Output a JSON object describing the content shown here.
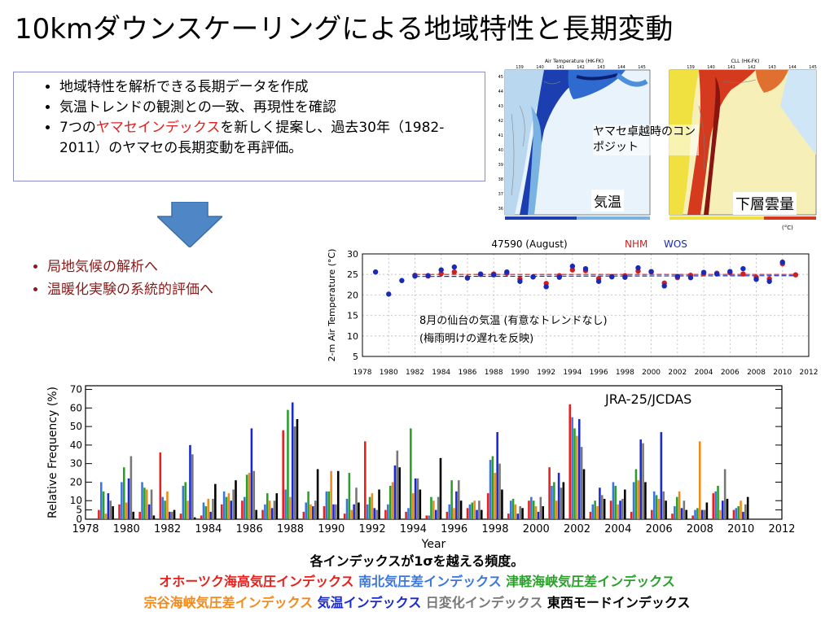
{
  "title": "10kmダウンスケーリングによる地域特性と長期変動",
  "bullets": {
    "items": [
      "地域特性を解析できる長期データを作成",
      "気温トレンドの観測との一致、再現性を確認"
    ],
    "item3_pre": "7つの",
    "item3_highlight": "ヤマセインデックス",
    "item3_post": "を新しく提案し、過去30年（1982-2011）のヤマセの長期変動を再評価。"
  },
  "next_steps": [
    "局地気候の解析へ",
    "温暖化実験の系統的評価へ"
  ],
  "maps": {
    "left_title": "Air Temperature (HK-FK)",
    "right_title": "CLL (HK-FK)",
    "lon_ticks": [
      "139",
      "140",
      "141",
      "142",
      "143",
      "144",
      "145"
    ],
    "lat_ticks": [
      "45",
      "44",
      "43",
      "42",
      "41",
      "40",
      "39",
      "38",
      "37",
      "36"
    ],
    "unit": "(°C)",
    "composite_label": "ヤマセ卓越時のコンポジット",
    "left_label": "気温",
    "right_label": "下層雲量",
    "colors": {
      "warm": "#d63a1e",
      "cold": "#1f4fc8",
      "mid": "#f0e040"
    }
  },
  "temp_chart": {
    "title": "47590 (August)",
    "legend_nhm": "NHM",
    "legend_wos": "WOS",
    "ylabel": "2-m Air Temperature (°C)",
    "annotation_line1": "8月の仙台の気温 (有意なトレンドなし)",
    "annotation_line2": "(梅雨明けの遅れを反映)"
  },
  "freq_chart": {
    "source": "JRA-25/JCDAS",
    "caption": "各インデックスが1σを越える頻度。"
  },
  "legend_rows": [
    [
      {
        "name": "オホーツク海高気圧インデックス",
        "color": "#e8201c"
      },
      {
        "name": "南北気圧差インデックス",
        "color": "#3a76e0"
      },
      {
        "name": "津軽海峡気圧差インデックス",
        "color": "#2aa02a"
      }
    ],
    [
      {
        "name": "宗谷海峡気圧差インデックス",
        "color": "#f08a1a"
      },
      {
        "name": "気温インデックス",
        "color": "#1a2ad0"
      },
      {
        "name": "日変化インデックス",
        "color": "#777777"
      },
      {
        "name": "東西モードインデックス",
        "color": "#000000"
      }
    ]
  ],
  "chart_data": [
    {
      "type": "scatter",
      "title": "47590 (August)",
      "xlabel": "",
      "ylabel": "2-m Air Temperature (°C)",
      "xlim": [
        1978,
        2012
      ],
      "ylim": [
        5,
        30
      ],
      "x_ticks": [
        1978,
        1980,
        1982,
        1984,
        1986,
        1988,
        1990,
        1992,
        1994,
        1996,
        1998,
        2000,
        2002,
        2004,
        2006,
        2008,
        2010,
        2012
      ],
      "y_ticks": [
        5,
        10,
        15,
        20,
        25,
        30
      ],
      "grid": true,
      "series": [
        {
          "name": "NHM",
          "color": "#d21e1e",
          "years": [
            1982,
            1983,
            1984,
            1985,
            1986,
            1987,
            1988,
            1989,
            1990,
            1991,
            1992,
            1993,
            1994,
            1995,
            1996,
            1997,
            1998,
            1999,
            2000,
            2001,
            2002,
            2003,
            2004,
            2005,
            2006,
            2007,
            2008,
            2009,
            2010,
            2011
          ],
          "values": [
            24.8,
            24.6,
            25.2,
            25.6,
            24.2,
            25.0,
            25.1,
            25.3,
            23.9,
            24.4,
            22.8,
            24.7,
            26.1,
            25.9,
            24.0,
            24.5,
            24.7,
            25.8,
            25.6,
            22.9,
            24.2,
            24.8,
            25.2,
            25.3,
            25.4,
            25.1,
            24.3,
            23.9,
            27.6,
            24.9
          ]
        },
        {
          "name": "WOS",
          "color": "#1a2ab8",
          "years": [
            1979,
            1980,
            1981,
            1982,
            1983,
            1984,
            1985,
            1986,
            1987,
            1988,
            1989,
            1990,
            1991,
            1992,
            1993,
            1994,
            1995,
            1996,
            1997,
            1998,
            1999,
            2000,
            2001,
            2002,
            2003,
            2004,
            2005,
            2006,
            2007,
            2008,
            2009,
            2010
          ],
          "values": [
            25.6,
            20.2,
            23.5,
            24.6,
            24.7,
            26.1,
            26.8,
            24.1,
            25.1,
            24.9,
            25.6,
            23.3,
            24.4,
            22.0,
            24.3,
            27.0,
            26.4,
            23.3,
            24.4,
            24.3,
            26.6,
            25.7,
            22.2,
            24.5,
            24.2,
            25.5,
            25.1,
            25.7,
            26.4,
            23.8,
            23.3,
            28.0
          ]
        }
      ],
      "trend_lines": [
        {
          "name": "NHM",
          "color": "#d21e1e",
          "from": [
            1982,
            25.0
          ],
          "to": [
            2011,
            25.0
          ]
        },
        {
          "name": "WOS",
          "color": "#1a2ab8",
          "from": [
            1982,
            24.5
          ],
          "to": [
            2011,
            24.7
          ]
        }
      ]
    },
    {
      "type": "bar",
      "title": "",
      "xlabel": "Year",
      "ylabel": "Relative Frequency (%)",
      "xlim": [
        1978,
        2012
      ],
      "ylim": [
        0,
        72
      ],
      "x_ticks": [
        1978,
        1980,
        1982,
        1984,
        1986,
        1988,
        1990,
        1992,
        1994,
        1996,
        1998,
        2000,
        2002,
        2004,
        2006,
        2008,
        2010,
        2012
      ],
      "y_ticks": [
        0,
        5,
        10,
        20,
        30,
        40,
        50,
        60,
        70
      ],
      "years": [
        1979,
        1980,
        1981,
        1982,
        1983,
        1984,
        1985,
        1986,
        1987,
        1988,
        1989,
        1990,
        1991,
        1992,
        1993,
        1994,
        1995,
        1996,
        1997,
        1998,
        1999,
        2000,
        2001,
        2002,
        2003,
        2004,
        2005,
        2006,
        2007,
        2008,
        2009,
        2010
      ],
      "series": [
        {
          "name": "オホーツク海高気圧インデックス",
          "color": "#e8201c",
          "values": [
            5,
            8,
            4,
            36,
            3,
            2,
            8,
            10,
            5,
            48,
            4,
            7,
            3,
            42,
            5,
            4,
            2,
            4,
            6,
            14,
            3,
            10,
            28,
            62,
            4,
            10,
            4,
            5,
            3,
            2,
            14,
            5
          ]
        },
        {
          "name": "南北気圧差インデックス",
          "color": "#3a76e0",
          "values": [
            20,
            20,
            20,
            12,
            18,
            9,
            15,
            12,
            8,
            16,
            9,
            15,
            11,
            8,
            8,
            6,
            2,
            8,
            8,
            32,
            10,
            12,
            18,
            55,
            8,
            20,
            20,
            15,
            7,
            5,
            15,
            6
          ]
        },
        {
          "name": "津軽海峡気圧差インデックス",
          "color": "#2aa02a",
          "values": [
            15,
            28,
            17,
            10,
            20,
            7,
            12,
            24,
            14,
            59,
            15,
            15,
            25,
            12,
            18,
            49,
            12,
            21,
            9,
            34,
            11,
            10,
            20,
            49,
            10,
            18,
            27,
            13,
            12,
            6,
            18,
            7
          ]
        },
        {
          "name": "宗谷海峡気圧差インデックス",
          "color": "#f08a1a",
          "values": [
            3,
            9,
            16,
            15,
            10,
            11,
            14,
            25,
            10,
            12,
            8,
            26,
            5,
            14,
            20,
            14,
            10,
            6,
            10,
            25,
            8,
            7,
            10,
            45,
            7,
            8,
            21,
            11,
            15,
            42,
            5,
            10
          ]
        },
        {
          "name": "気温インデックス",
          "color": "#1a2ad0",
          "values": [
            14,
            22,
            8,
            4,
            40,
            4,
            10,
            49,
            6,
            63,
            7,
            8,
            8,
            6,
            29,
            22,
            5,
            15,
            5,
            47,
            3,
            4,
            25,
            54,
            17,
            10,
            43,
            47,
            6,
            5,
            10,
            4
          ]
        },
        {
          "name": "日変化インデックス",
          "color": "#777777",
          "values": [
            10,
            34,
            16,
            4,
            35,
            11,
            16,
            26,
            10,
            50,
            10,
            8,
            17,
            5,
            37,
            22,
            12,
            21,
            10,
            30,
            7,
            12,
            17,
            39,
            13,
            11,
            41,
            15,
            10,
            5,
            27,
            8
          ]
        },
        {
          "name": "東西モードインデックス",
          "color": "#000000",
          "values": [
            7,
            4,
            2,
            5,
            1,
            19,
            21,
            5,
            14,
            54,
            27,
            26,
            9,
            16,
            28,
            16,
            33,
            10,
            5,
            16,
            6,
            7,
            20,
            27,
            11,
            16,
            20,
            10,
            5,
            9,
            11,
            12
          ]
        }
      ]
    }
  ]
}
